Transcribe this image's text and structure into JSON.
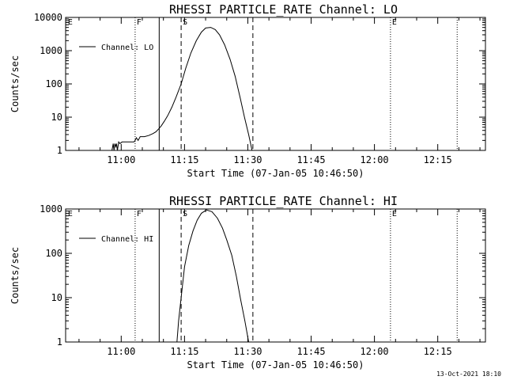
{
  "chart_data": [
    {
      "type": "line",
      "title": "RHESSI PARTICLE_RATE Channel: LO",
      "xlabel": "Start Time (07-Jan-05 10:46:50)",
      "ylabel": "Counts/sec",
      "yscale": "log",
      "ylim": [
        1,
        10000
      ],
      "xlim": [
        46.83,
        146.3
      ],
      "xticks": [
        60,
        75,
        90,
        105,
        120,
        135
      ],
      "xtick_labels": [
        "11:00",
        "11:15",
        "11:30",
        "11:45",
        "12:00",
        "12:15"
      ],
      "yticks": [
        1,
        10,
        100,
        1000,
        10000
      ],
      "ytick_labels": [
        "1",
        "10",
        "100",
        "1000",
        "10000"
      ],
      "legend": {
        "label": "Channel: LO",
        "location": "top-left"
      },
      "markers": [
        {
          "label": "E",
          "x": 47.0,
          "style": "dotted",
          "show_line": false
        },
        {
          "label": "F",
          "x": 63.3,
          "style": "dotted",
          "show_line": true
        },
        {
          "label": "",
          "x": 69.0,
          "style": "solid",
          "show_line": true
        },
        {
          "label": "S",
          "x": 74.2,
          "style": "dashed",
          "show_line": true
        },
        {
          "label": "",
          "x": 91.2,
          "style": "dashed",
          "show_line": true
        },
        {
          "label": "E",
          "x": 123.8,
          "style": "dotted",
          "show_line": true
        },
        {
          "label": "",
          "x": 139.6,
          "style": "dotted",
          "show_line": true
        }
      ],
      "series": [
        {
          "name": "Channel: LO",
          "x": [
            57.8,
            58.1,
            58.3,
            58.5,
            58.7,
            58.9,
            59.1,
            59.4,
            59.7,
            60.2,
            61.0,
            62.0,
            63.0,
            63.3,
            63.6,
            64.0,
            64.5,
            65.5,
            66.5,
            67.5,
            68.2,
            69.0,
            69.5,
            70.2,
            71.0,
            72.0,
            73.0,
            74.2,
            75.3,
            76.5,
            77.8,
            79.0,
            80.0,
            81.2,
            82.3,
            83.3,
            84.5,
            85.8,
            87.0,
            88.2,
            89.2,
            90.2,
            91.0
          ],
          "values": [
            1.0,
            1.6,
            1.0,
            1.6,
            1.3,
            1.6,
            1.0,
            1.8,
            1.6,
            1.8,
            1.8,
            1.8,
            1.8,
            2.0,
            2.4,
            2.0,
            2.6,
            2.6,
            2.8,
            3.2,
            3.6,
            4.6,
            5.5,
            7.5,
            11,
            20,
            40,
            100,
            300,
            850,
            2000,
            3600,
            4800,
            5000,
            4300,
            3000,
            1500,
            550,
            170,
            38,
            10,
            3,
            1
          ]
        }
      ]
    },
    {
      "type": "line",
      "title": "RHESSI PARTICLE_RATE Channel: HI",
      "xlabel": "Start Time (07-Jan-05 10:46:50)",
      "ylabel": "Counts/sec",
      "yscale": "log",
      "ylim": [
        1,
        1000
      ],
      "xlim": [
        46.83,
        146.3
      ],
      "xticks": [
        60,
        75,
        90,
        105,
        120,
        135
      ],
      "xtick_labels": [
        "11:00",
        "11:15",
        "11:30",
        "11:45",
        "12:00",
        "12:15"
      ],
      "yticks": [
        1,
        10,
        100,
        1000
      ],
      "ytick_labels": [
        "1",
        "10",
        "100",
        "1000"
      ],
      "legend": {
        "label": "Channel: HI",
        "location": "top-left"
      },
      "markers": [
        {
          "label": "E",
          "x": 47.0,
          "style": "dotted",
          "show_line": false
        },
        {
          "label": "F",
          "x": 63.3,
          "style": "dotted",
          "show_line": true
        },
        {
          "label": "",
          "x": 69.0,
          "style": "solid",
          "show_line": true
        },
        {
          "label": "S",
          "x": 74.2,
          "style": "dashed",
          "show_line": true
        },
        {
          "label": "",
          "x": 91.2,
          "style": "dashed",
          "show_line": true
        },
        {
          "label": "E",
          "x": 123.8,
          "style": "dotted",
          "show_line": true
        },
        {
          "label": "",
          "x": 139.6,
          "style": "dotted",
          "show_line": true
        }
      ],
      "series": [
        {
          "name": "Channel: HI",
          "x": [
            73.2,
            73.6,
            74.2,
            75.0,
            76.0,
            77.0,
            78.0,
            79.0,
            80.2,
            81.5,
            82.8,
            84.0,
            85.0,
            86.2,
            87.3,
            88.3,
            89.3,
            90.2
          ],
          "values": [
            1.0,
            3,
            10,
            50,
            150,
            320,
            560,
            800,
            950,
            870,
            620,
            370,
            200,
            90,
            30,
            9,
            3,
            1
          ]
        }
      ]
    }
  ],
  "timestamp": "13-Oct-2021 18:10"
}
